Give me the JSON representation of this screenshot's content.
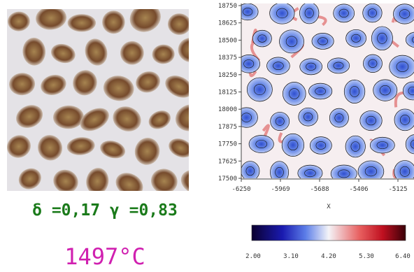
{
  "caption": {
    "parameters": "δ =0,17 γ =0,83",
    "temperature": "1497°C"
  },
  "map": {
    "yticks": [
      "18750",
      "18625",
      "18500",
      "18375",
      "18250",
      "18125",
      "18000",
      "17875",
      "17750",
      "17625",
      "17500"
    ],
    "xticks": [
      "-6250",
      "-5969",
      "-5688",
      "-5406",
      "-5125"
    ],
    "xlabel": "X"
  },
  "colorbar": {
    "ticks": [
      "2.00",
      "3.10",
      "4.20",
      "5.30",
      "6.40"
    ]
  }
}
